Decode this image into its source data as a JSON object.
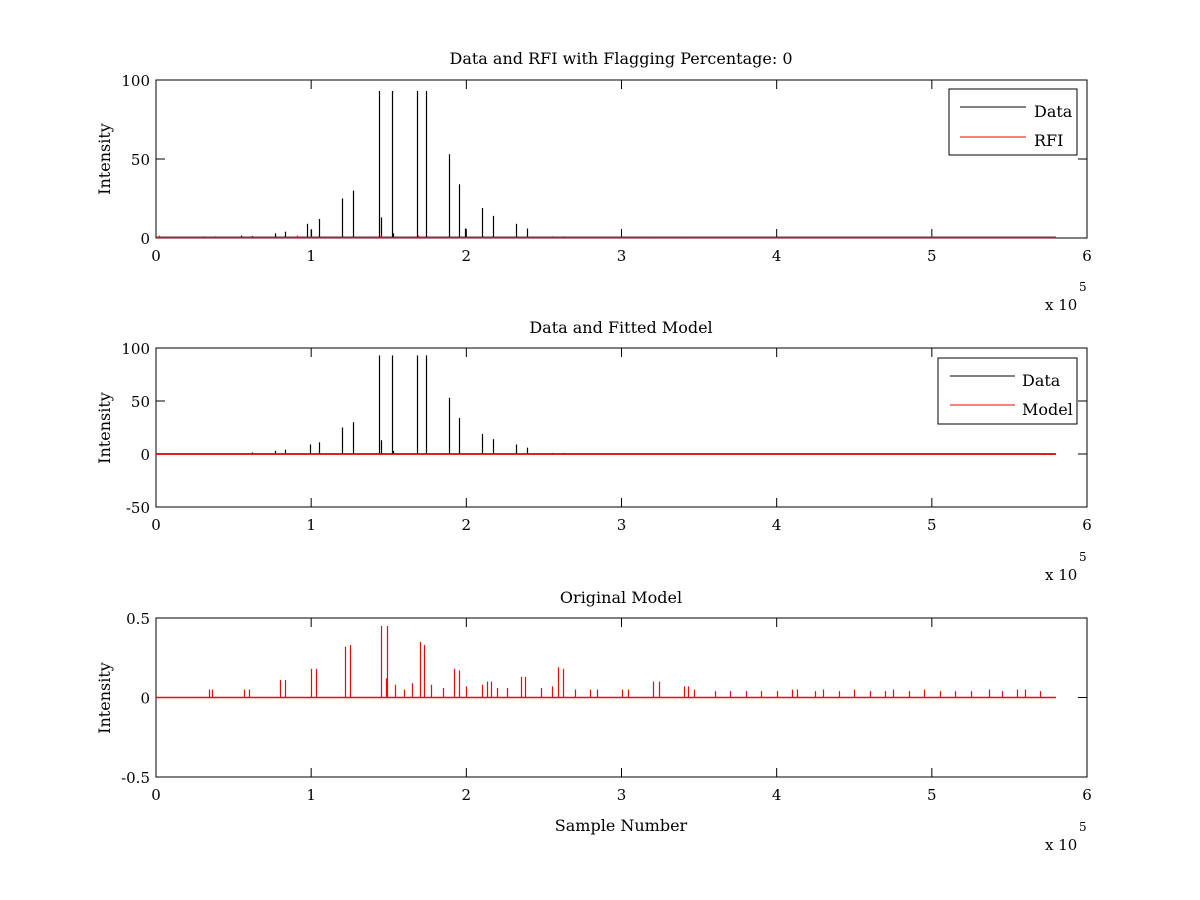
{
  "chart_data": [
    {
      "type": "line",
      "title": "Data and RFI with Flagging Percentage: 0",
      "xlabel": "",
      "ylabel": "Intensity",
      "xlim": [
        0,
        6
      ],
      "ylim": [
        0,
        100
      ],
      "xticks": [
        0,
        1,
        2,
        3,
        4,
        5,
        6
      ],
      "yticks": [
        0,
        50,
        100
      ],
      "x_exponent_label": "x 10",
      "x_exponent": "5",
      "x_data_end": 5.8,
      "grid": false,
      "legend_position": "top-right",
      "series": [
        {
          "name": "Data",
          "color": "#000000",
          "baseline": 0.4,
          "spikes": [
            [
              0.3,
              1
            ],
            [
              0.38,
              1
            ],
            [
              0.55,
              1.5
            ],
            [
              0.62,
              1.2
            ],
            [
              0.77,
              3
            ],
            [
              0.83,
              4
            ],
            [
              0.97,
              9
            ],
            [
              1.0,
              5
            ],
            [
              1.05,
              12
            ],
            [
              1.2,
              25
            ],
            [
              1.27,
              30
            ],
            [
              1.44,
              93
            ],
            [
              1.45,
              13
            ],
            [
              1.52,
              93
            ],
            [
              1.53,
              3
            ],
            [
              1.68,
              93
            ],
            [
              1.74,
              93
            ],
            [
              1.89,
              53
            ],
            [
              1.95,
              34
            ],
            [
              1.99,
              6
            ],
            [
              2.1,
              19
            ],
            [
              2.17,
              14
            ],
            [
              2.32,
              9
            ],
            [
              2.39,
              6
            ],
            [
              2.55,
              1
            ],
            [
              2.62,
              1
            ],
            [
              3.2,
              0.8
            ],
            [
              3.4,
              0.8
            ]
          ]
        },
        {
          "name": "RFI",
          "color": "#ff0000",
          "baseline": 0.3,
          "spikes": [
            [
              0.02,
              1.5
            ],
            [
              0.91,
              1.5
            ],
            [
              1.0,
              1
            ],
            [
              1.45,
              1.5
            ],
            [
              1.69,
              1.5
            ]
          ]
        }
      ]
    },
    {
      "type": "line",
      "title": "Data and Fitted Model",
      "xlabel": "",
      "ylabel": "Intensity",
      "xlim": [
        0,
        6
      ],
      "ylim": [
        -50,
        100
      ],
      "xticks": [
        0,
        1,
        2,
        3,
        4,
        5,
        6
      ],
      "yticks": [
        -50,
        0,
        50,
        100
      ],
      "x_exponent_label": "x 10",
      "x_exponent": "5",
      "x_data_end": 5.8,
      "grid": false,
      "legend_position": "top-right",
      "series": [
        {
          "name": "Data",
          "color": "#000000",
          "baseline": 0,
          "spikes": [
            [
              0.62,
              1.5
            ],
            [
              0.77,
              3
            ],
            [
              0.83,
              4
            ],
            [
              0.99,
              9
            ],
            [
              1.05,
              11
            ],
            [
              1.2,
              25
            ],
            [
              1.27,
              30
            ],
            [
              1.44,
              93
            ],
            [
              1.45,
              13
            ],
            [
              1.52,
              93
            ],
            [
              1.53,
              3
            ],
            [
              1.68,
              93
            ],
            [
              1.74,
              93
            ],
            [
              1.89,
              53
            ],
            [
              1.95,
              34
            ],
            [
              2.1,
              19
            ],
            [
              2.17,
              14
            ],
            [
              2.32,
              9
            ],
            [
              2.39,
              6
            ],
            [
              2.55,
              1
            ],
            [
              2.62,
              1
            ],
            [
              5.72,
              -1
            ],
            [
              5.76,
              -1
            ]
          ]
        },
        {
          "name": "Model",
          "color": "#ff0000",
          "baseline": 0,
          "spikes": []
        }
      ]
    },
    {
      "type": "line",
      "title": "Original Model",
      "xlabel": "Sample Number",
      "ylabel": "Intensity",
      "xlim": [
        0,
        6
      ],
      "ylim": [
        -0.5,
        0.5
      ],
      "xticks": [
        0,
        1,
        2,
        3,
        4,
        5,
        6
      ],
      "yticks": [
        -0.5,
        0,
        0.5
      ],
      "x_exponent_label": "x 10",
      "x_exponent": "5",
      "x_data_end": 5.8,
      "grid": false,
      "series": [
        {
          "name": "",
          "color": "#ff0000",
          "baseline": 0,
          "spikes": [
            [
              0.34,
              0.05
            ],
            [
              0.36,
              0.05
            ],
            [
              0.57,
              0.05
            ],
            [
              0.6,
              0.05
            ],
            [
              0.8,
              0.11
            ],
            [
              0.83,
              0.11
            ],
            [
              1.0,
              0.18
            ],
            [
              1.03,
              0.18
            ],
            [
              1.22,
              0.32
            ],
            [
              1.25,
              0.33
            ],
            [
              1.45,
              0.45
            ],
            [
              1.49,
              0.45
            ],
            [
              1.48,
              0.12
            ],
            [
              1.54,
              0.08
            ],
            [
              1.6,
              0.05
            ],
            [
              1.65,
              0.09
            ],
            [
              1.7,
              0.35
            ],
            [
              1.73,
              0.33
            ],
            [
              1.77,
              0.08
            ],
            [
              1.85,
              0.06
            ],
            [
              1.92,
              0.18
            ],
            [
              1.95,
              0.17
            ],
            [
              2.0,
              0.07
            ],
            [
              2.1,
              0.08
            ],
            [
              2.13,
              0.1
            ],
            [
              2.16,
              0.1
            ],
            [
              2.2,
              0.06
            ],
            [
              2.26,
              0.06
            ],
            [
              2.35,
              0.13
            ],
            [
              2.38,
              0.13
            ],
            [
              2.48,
              0.06
            ],
            [
              2.55,
              0.07
            ],
            [
              2.59,
              0.19
            ],
            [
              2.62,
              0.18
            ],
            [
              2.7,
              0.05
            ],
            [
              2.8,
              0.05
            ],
            [
              2.84,
              0.05
            ],
            [
              3.0,
              0.05
            ],
            [
              3.04,
              0.05
            ],
            [
              3.2,
              0.1
            ],
            [
              3.24,
              0.1
            ],
            [
              3.4,
              0.07
            ],
            [
              3.43,
              0.07
            ],
            [
              3.47,
              0.05
            ],
            [
              3.6,
              0.04
            ],
            [
              3.7,
              0.04
            ],
            [
              3.8,
              0.04
            ],
            [
              3.9,
              0.04
            ],
            [
              4.0,
              0.04
            ],
            [
              4.1,
              0.05
            ],
            [
              4.13,
              0.05
            ],
            [
              4.25,
              0.04
            ],
            [
              4.3,
              0.05
            ],
            [
              4.4,
              0.04
            ],
            [
              4.5,
              0.05
            ],
            [
              4.6,
              0.04
            ],
            [
              4.7,
              0.04
            ],
            [
              4.75,
              0.05
            ],
            [
              4.85,
              0.04
            ],
            [
              4.95,
              0.05
            ],
            [
              5.05,
              0.04
            ],
            [
              5.15,
              0.04
            ],
            [
              5.25,
              0.04
            ],
            [
              5.37,
              0.05
            ],
            [
              5.45,
              0.04
            ],
            [
              5.55,
              0.05
            ],
            [
              5.6,
              0.05
            ],
            [
              5.7,
              0.04
            ]
          ]
        }
      ]
    }
  ]
}
